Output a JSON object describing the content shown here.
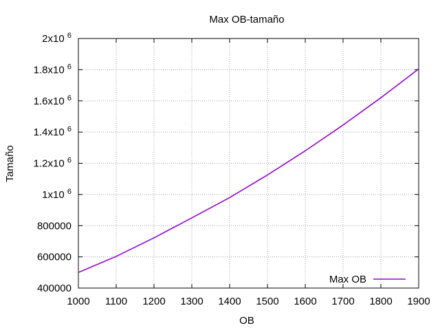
{
  "chart_data": {
    "type": "line",
    "title": "Max OB-tamaño",
    "xlabel": "OB",
    "ylabel": "Tamaño",
    "xlim": [
      1000,
      1900
    ],
    "ylim": [
      400000,
      2000000
    ],
    "grid": true,
    "legend_position": "bottom-right",
    "x_ticks": [
      1000,
      1100,
      1200,
      1300,
      1400,
      1500,
      1600,
      1700,
      1800,
      1900
    ],
    "y_ticks": [
      {
        "value": 400000,
        "label": "400000",
        "sup": ""
      },
      {
        "value": 600000,
        "label": "600000",
        "sup": ""
      },
      {
        "value": 800000,
        "label": "800000",
        "sup": ""
      },
      {
        "value": 1000000,
        "label": "1x10",
        "sup": "6"
      },
      {
        "value": 1200000,
        "label": "1.2x10",
        "sup": "6"
      },
      {
        "value": 1400000,
        "label": "1.4x10",
        "sup": "6"
      },
      {
        "value": 1600000,
        "label": "1.6x10",
        "sup": "6"
      },
      {
        "value": 1800000,
        "label": "1.8x10",
        "sup": "6"
      },
      {
        "value": 2000000,
        "label": "2x10",
        "sup": "6"
      }
    ],
    "series": [
      {
        "name": "Max OB",
        "color": "#9400d3",
        "x": [
          1000,
          1100,
          1200,
          1300,
          1400,
          1500,
          1600,
          1700,
          1800,
          1900
        ],
        "values": [
          500000,
          603000,
          722000,
          850000,
          980000,
          1125000,
          1280000,
          1445000,
          1620000,
          1805000
        ]
      }
    ]
  }
}
